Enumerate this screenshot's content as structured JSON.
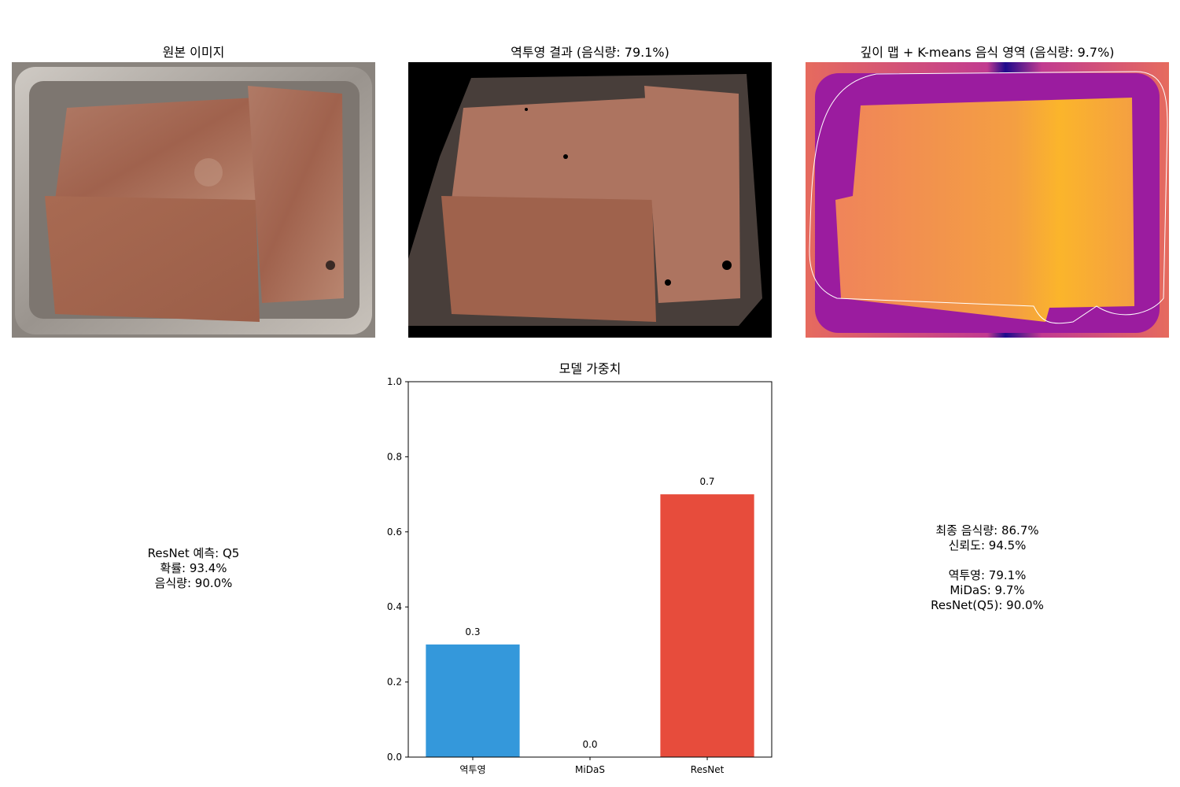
{
  "panels": {
    "original_title": "원본 이미지",
    "backproj_title": "역투영 결과 (음식량: 79.1%)",
    "depth_title": "깊이 맵 + K-means 음식 영역 (음식량: 9.7%)"
  },
  "resnet_info": {
    "line1": "ResNet 예측: Q5",
    "line2": "확률: 93.4%",
    "line3": "음식량: 90.0%"
  },
  "final_info": {
    "line1": "최종 음식량: 86.7%",
    "line2": "신뢰도: 94.5%",
    "line3": "",
    "line4": "역투영: 79.1%",
    "line5": "MiDaS: 9.7%",
    "line6": "ResNet(Q5): 90.0%"
  },
  "chart_data": {
    "type": "bar",
    "title": "모델 가중치",
    "categories": [
      "역투영",
      "MiDaS",
      "ResNet"
    ],
    "values": [
      0.3,
      0.0,
      0.7
    ],
    "value_labels": [
      "0.3",
      "0.0",
      "0.7"
    ],
    "ylim": [
      0,
      1.0
    ],
    "yticks": [
      "0.0",
      "0.2",
      "0.4",
      "0.6",
      "0.8",
      "1.0"
    ],
    "colors": [
      "#3498db",
      "#2ecc71",
      "#e74c3c"
    ],
    "xlabel": "",
    "ylabel": "",
    "grid": false
  }
}
